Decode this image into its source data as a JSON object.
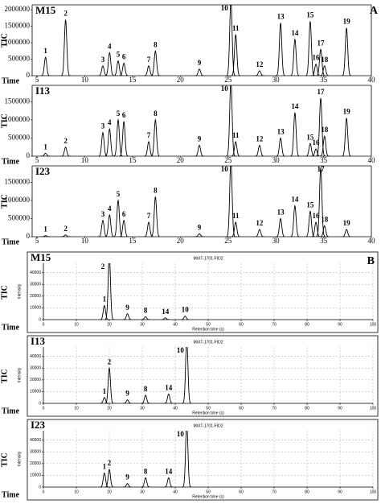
{
  "chart_data": [
    {
      "type": "peaks",
      "panel": "A",
      "sample": "M15",
      "xlabel": "Time",
      "ylabel": "TIC",
      "color": "#000000",
      "xlim": [
        4.5,
        40
      ],
      "xticks": [
        5,
        10,
        15,
        20,
        25,
        30,
        35,
        40
      ],
      "ylim": [
        0,
        2150000
      ],
      "yticks": [
        0,
        500000,
        1000000,
        1500000,
        2000000
      ],
      "grid": false,
      "peaks": [
        {
          "label": "1",
          "x": 5.9,
          "y": 560000
        },
        {
          "label": "2",
          "x": 8.0,
          "y": 1700000
        },
        {
          "label": "3",
          "x": 11.9,
          "y": 300000
        },
        {
          "label": "4",
          "x": 12.6,
          "y": 700000
        },
        {
          "label": "5",
          "x": 13.5,
          "y": 450000
        },
        {
          "label": "6",
          "x": 14.1,
          "y": 380000
        },
        {
          "label": "7",
          "x": 16.7,
          "y": 300000
        },
        {
          "label": "8",
          "x": 17.4,
          "y": 750000
        },
        {
          "label": "9",
          "x": 22.0,
          "y": 200000
        },
        {
          "label": "10",
          "x": 25.3,
          "y": 2300000
        },
        {
          "label": "11",
          "x": 25.8,
          "y": 1250000
        },
        {
          "label": "12",
          "x": 28.3,
          "y": 150000
        },
        {
          "label": "13",
          "x": 30.5,
          "y": 1600000
        },
        {
          "label": "14",
          "x": 32.0,
          "y": 1100000
        },
        {
          "label": "15",
          "x": 33.6,
          "y": 1650000
        },
        {
          "label": "16",
          "x": 34.2,
          "y": 350000
        },
        {
          "label": "17",
          "x": 34.7,
          "y": 800000
        },
        {
          "label": "18",
          "x": 35.1,
          "y": 300000
        },
        {
          "label": "19",
          "x": 37.4,
          "y": 1450000
        }
      ]
    },
    {
      "type": "peaks",
      "sample": "I13",
      "xlabel": "Time",
      "ylabel": "TIC",
      "color": "#000000",
      "xlim": [
        4.5,
        40
      ],
      "xticks": [
        5,
        10,
        15,
        20,
        25,
        30,
        35,
        40
      ],
      "ylim": [
        0,
        1950000
      ],
      "yticks": [
        0,
        500000,
        1000000,
        1500000
      ],
      "grid": false,
      "peaks": [
        {
          "label": "1",
          "x": 5.9,
          "y": 80000
        },
        {
          "label": "2",
          "x": 8.0,
          "y": 250000
        },
        {
          "label": "3",
          "x": 11.9,
          "y": 650000
        },
        {
          "label": "4",
          "x": 12.6,
          "y": 750000
        },
        {
          "label": "5",
          "x": 13.5,
          "y": 1000000
        },
        {
          "label": "6",
          "x": 14.1,
          "y": 950000
        },
        {
          "label": "7",
          "x": 16.7,
          "y": 400000
        },
        {
          "label": "8",
          "x": 17.4,
          "y": 1000000
        },
        {
          "label": "9",
          "x": 22.0,
          "y": 300000
        },
        {
          "label": "10",
          "x": 25.3,
          "y": 2100000
        },
        {
          "label": "11",
          "x": 25.8,
          "y": 400000
        },
        {
          "label": "12",
          "x": 28.3,
          "y": 300000
        },
        {
          "label": "13",
          "x": 30.5,
          "y": 500000
        },
        {
          "label": "14",
          "x": 32.0,
          "y": 1200000
        },
        {
          "label": "15",
          "x": 33.6,
          "y": 350000
        },
        {
          "label": "16",
          "x": 34.2,
          "y": 200000
        },
        {
          "label": "17",
          "x": 34.7,
          "y": 1600000
        },
        {
          "label": "18",
          "x": 35.1,
          "y": 550000
        },
        {
          "label": "19",
          "x": 37.4,
          "y": 1050000
        }
      ]
    },
    {
      "type": "peaks",
      "sample": "I23",
      "xlabel": "Time",
      "ylabel": "TIC",
      "color": "#000000",
      "xlim": [
        4.5,
        40
      ],
      "xticks": [
        5,
        10,
        15,
        20,
        25,
        30,
        35,
        40
      ],
      "ylim": [
        0,
        1950000
      ],
      "yticks": [
        0,
        500000,
        1000000,
        1500000
      ],
      "grid": false,
      "peaks": [
        {
          "label": "1",
          "x": 5.9,
          "y": 30000
        },
        {
          "label": "2",
          "x": 8.0,
          "y": 50000
        },
        {
          "label": "3",
          "x": 11.9,
          "y": 450000
        },
        {
          "label": "4",
          "x": 12.6,
          "y": 600000
        },
        {
          "label": "5",
          "x": 13.5,
          "y": 1000000
        },
        {
          "label": "6",
          "x": 14.1,
          "y": 450000
        },
        {
          "label": "7",
          "x": 16.7,
          "y": 400000
        },
        {
          "label": "8",
          "x": 17.4,
          "y": 1100000
        },
        {
          "label": "9",
          "x": 22.0,
          "y": 80000
        },
        {
          "label": "10",
          "x": 25.3,
          "y": 2100000
        },
        {
          "label": "11",
          "x": 25.8,
          "y": 400000
        },
        {
          "label": "12",
          "x": 28.3,
          "y": 200000
        },
        {
          "label": "13",
          "x": 30.5,
          "y": 500000
        },
        {
          "label": "14",
          "x": 32.0,
          "y": 850000
        },
        {
          "label": "15",
          "x": 33.6,
          "y": 700000
        },
        {
          "label": "16",
          "x": 34.2,
          "y": 400000
        },
        {
          "label": "17",
          "x": 34.7,
          "y": 1900000
        },
        {
          "label": "18",
          "x": 35.1,
          "y": 300000
        },
        {
          "label": "19",
          "x": 37.4,
          "y": 200000
        }
      ]
    },
    {
      "type": "peaks",
      "panel": "B",
      "sample": "M15",
      "header": "MIXT-1701-FID2",
      "xlabel": "Time",
      "ylabel": "TIC",
      "inner_xlabel": "Retention time (s)",
      "inner_ylabel": "Intensity",
      "color": "#000000",
      "xlim": [
        0,
        100
      ],
      "xticks": [
        0,
        10,
        20,
        30,
        40,
        50,
        60,
        70,
        80,
        90,
        100
      ],
      "ylim": [
        0,
        48000
      ],
      "yticks": [
        0,
        10000,
        20000,
        30000,
        40000
      ],
      "grid": true,
      "peaks": [
        {
          "label": "1",
          "x": 18.5,
          "y": 12000
        },
        {
          "label": "2",
          "x": 20.0,
          "y": 55000
        },
        {
          "label": "9",
          "x": 25.5,
          "y": 5000
        },
        {
          "label": "8",
          "x": 31.0,
          "y": 2500
        },
        {
          "label": "14",
          "x": 37.0,
          "y": 1500
        },
        {
          "label": "10",
          "x": 43.0,
          "y": 3000
        }
      ]
    },
    {
      "type": "peaks",
      "sample": "I13",
      "header": "MIXT-1701-FID2",
      "xlabel": "Time",
      "ylabel": "TIC",
      "inner_xlabel": "Retention time (s)",
      "inner_ylabel": "Intensity",
      "color": "#000000",
      "xlim": [
        0,
        100
      ],
      "xticks": [
        0,
        10,
        20,
        30,
        40,
        50,
        60,
        70,
        80,
        90,
        100
      ],
      "ylim": [
        0,
        48000
      ],
      "yticks": [
        0,
        10000,
        20000,
        30000,
        40000
      ],
      "grid": true,
      "peaks": [
        {
          "label": "1",
          "x": 18.5,
          "y": 5000
        },
        {
          "label": "2",
          "x": 20.0,
          "y": 30000
        },
        {
          "label": "9",
          "x": 25.5,
          "y": 3000
        },
        {
          "label": "8",
          "x": 31.0,
          "y": 7000
        },
        {
          "label": "14",
          "x": 38.0,
          "y": 8000
        },
        {
          "label": "10",
          "x": 43.5,
          "y": 55000
        }
      ]
    },
    {
      "type": "peaks",
      "sample": "I23",
      "header": "MIXT-1701-FID2",
      "xlabel": "Time",
      "ylabel": "TIC",
      "inner_xlabel": "Retention time (s)",
      "inner_ylabel": "Intensity",
      "color": "#000000",
      "xlim": [
        0,
        100
      ],
      "xticks": [
        0,
        10,
        20,
        30,
        40,
        50,
        60,
        70,
        80,
        90,
        100
      ],
      "ylim": [
        0,
        48000
      ],
      "yticks": [
        0,
        10000,
        20000,
        30000,
        40000
      ],
      "grid": true,
      "peaks": [
        {
          "label": "1",
          "x": 18.5,
          "y": 12000
        },
        {
          "label": "2",
          "x": 20.0,
          "y": 15000
        },
        {
          "label": "9",
          "x": 25.5,
          "y": 3000
        },
        {
          "label": "8",
          "x": 31.0,
          "y": 8000
        },
        {
          "label": "14",
          "x": 38.0,
          "y": 8000
        },
        {
          "label": "10",
          "x": 43.5,
          "y": 55000
        }
      ]
    }
  ]
}
